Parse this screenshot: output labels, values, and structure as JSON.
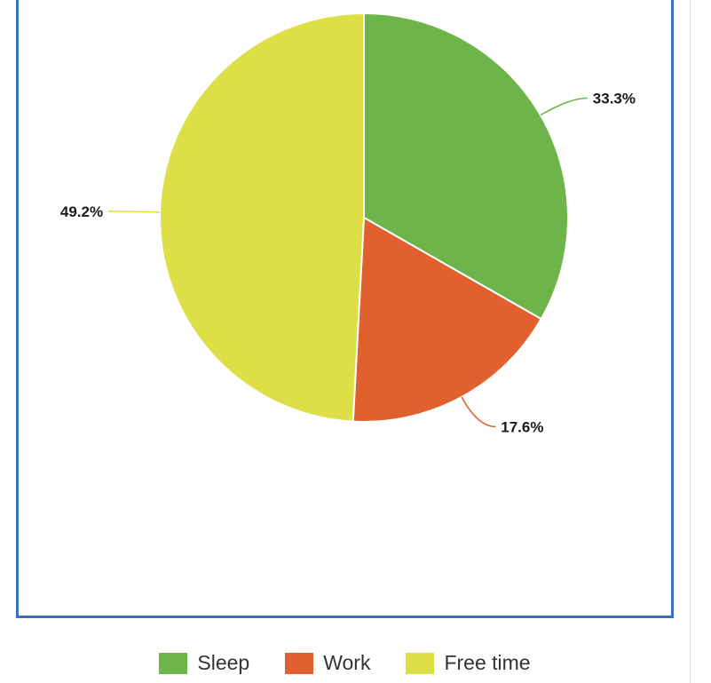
{
  "chart_data": {
    "type": "pie",
    "slices": [
      {
        "name": "Sleep",
        "value": 33.3,
        "label": "33.3%",
        "color": "#6db44a"
      },
      {
        "name": "Work",
        "value": 17.6,
        "label": "17.6%",
        "color": "#e06030"
      },
      {
        "name": "Free time",
        "value": 49.2,
        "label": "49.2%",
        "color": "#dcdf45"
      }
    ],
    "start_angle": "12 o'clock",
    "direction": "clockwise",
    "legend_position": "bottom",
    "data_labels": "outside with leader lines"
  },
  "legend": {
    "items": [
      {
        "label": "Sleep",
        "color": "#6db44a"
      },
      {
        "label": "Work",
        "color": "#e06030"
      },
      {
        "label": "Free time",
        "color": "#dcdf45"
      }
    ]
  }
}
